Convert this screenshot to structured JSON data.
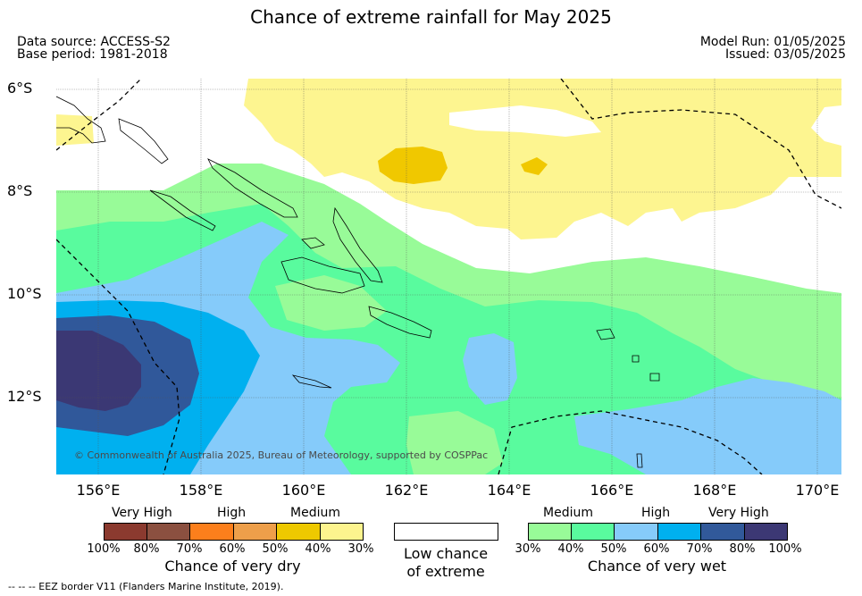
{
  "title": "Chance of extreme rainfall for May 2025",
  "meta": {
    "data_source": "Data source: ACCESS-S2",
    "base_period": "Base period: 1981-2018",
    "model_run": "Model Run: 01/05/2025",
    "issued": "Issued: 03/05/2025"
  },
  "map": {
    "lat_labels": [
      "6°S",
      "8°S",
      "10°S",
      "12°S"
    ],
    "lon_labels": [
      "156°E",
      "158°E",
      "160°E",
      "162°E",
      "164°E",
      "166°E",
      "168°E",
      "170°E"
    ],
    "credit": "© Commonwealth of Australia 2025, Bureau of Meteorology, supported by COSPPac",
    "colors": {
      "dry_high_40": "#fdf590",
      "dry_medium_50": "#f0c800",
      "wet_medium_30": "#98fb98",
      "wet_high_40": "#59fb9e",
      "wet_50": "#85cbfa",
      "wet_60": "#00b0ef",
      "wet_70": "#30589a",
      "wet_80": "#3b3874"
    }
  },
  "legend": {
    "dry": {
      "headings": [
        "Very High",
        "High",
        "Medium"
      ],
      "ticks": [
        "100%",
        "80%",
        "70%",
        "60%",
        "50%",
        "40%",
        "30%"
      ],
      "colors": [
        "#8b3a2f",
        "#8b5040",
        "#fc7f1c",
        "#ee9f4a",
        "#eec900",
        "#fdf48e"
      ],
      "label": "Chance of very dry"
    },
    "low": {
      "label_line1": "Low chance",
      "label_line2": "of extreme"
    },
    "wet": {
      "headings": [
        "Medium",
        "High",
        "Very High"
      ],
      "ticks": [
        "30%",
        "40%",
        "50%",
        "60%",
        "70%",
        "80%",
        "100%"
      ],
      "colors": [
        "#98fb98",
        "#59fb9e",
        "#86cbfa",
        "#00b0ef",
        "#31599a",
        "#3c3874"
      ],
      "label": "Chance of very wet"
    }
  },
  "footer": "-- -- -- EEZ border V11 (Flanders Marine Institute, 2019)."
}
